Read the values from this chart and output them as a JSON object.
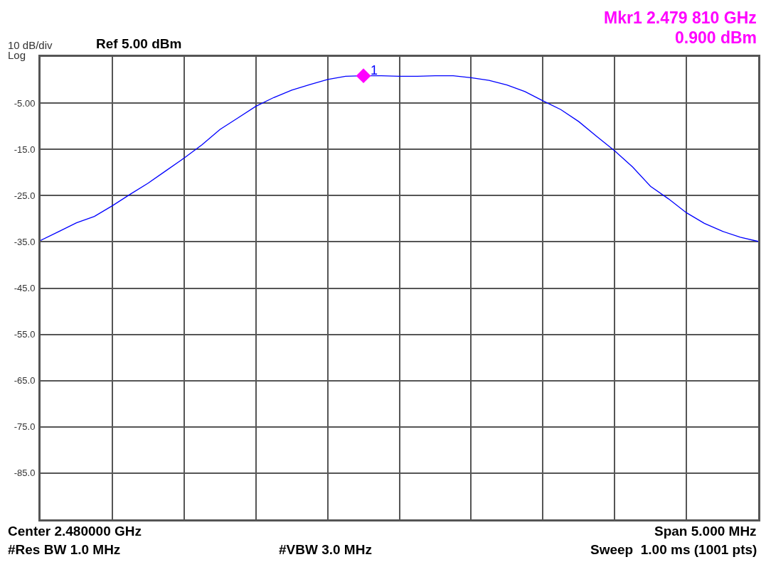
{
  "chart_data": {
    "type": "line",
    "categories": [
      null,
      null,
      null,
      null,
      null,
      null,
      null,
      null,
      null,
      null,
      null,
      null,
      null,
      null,
      null,
      null,
      null,
      null,
      null,
      null,
      null,
      null,
      null,
      null,
      null,
      null,
      null,
      null,
      null,
      null,
      null,
      null,
      null,
      null,
      null,
      null,
      null,
      null,
      null,
      null,
      null
    ],
    "series": [
      {
        "color": "#0000ff",
        "values": [
          -34.7,
          -32.8,
          -30.9,
          -29.5,
          -27.2,
          -24.7,
          -22.3,
          -19.6,
          -16.9,
          -14.0,
          -10.7,
          -8.2,
          -5.7,
          -3.8,
          -2.2,
          -1.0,
          0.1,
          0.8,
          0.9,
          0.9,
          0.8,
          0.8,
          0.9,
          0.9,
          0.5,
          -0.1,
          -1.1,
          -2.5,
          -4.5,
          -6.4,
          -9.0,
          -12.2,
          -15.3,
          -18.8,
          -23.0,
          -25.7,
          -28.7,
          -31.0,
          -32.7,
          -34.0,
          -34.9
        ]
      },
      {
        "type": "scatter",
        "marker": "diamond",
        "color": "#ff00ff",
        "values": [
          null,
          null,
          null,
          null,
          null,
          null,
          null,
          null,
          null,
          null,
          null,
          null,
          null,
          null,
          null,
          null,
          null,
          null,
          0.9,
          null,
          null,
          null,
          null,
          null,
          null,
          null,
          null,
          null,
          null,
          null,
          null,
          null,
          null,
          null,
          null,
          null,
          null,
          null,
          null,
          null,
          null
        ]
      }
    ],
    "ylim": [
      -95,
      5
    ],
    "yticks": [
      {
        "value": -5,
        "label": "-5.00"
      },
      {
        "value": -15,
        "label": "-15.0"
      },
      {
        "value": -25,
        "label": "-25.0"
      },
      {
        "value": -35,
        "label": "-35.0"
      },
      {
        "value": -45,
        "label": "-45.0"
      },
      {
        "value": -55,
        "label": "-55.0"
      },
      {
        "value": -65,
        "label": "-65.0"
      },
      {
        "value": -75,
        "label": "-75.0"
      },
      {
        "value": -85,
        "label": "-85.0"
      }
    ],
    "grid": true,
    "marker": "none",
    "line_style": "solid",
    "annotations": [
      {
        "text": "1",
        "y": 0.9
      },
      "Mkr1 2.479 810 GHz",
      "0.900 dBm",
      "10 dB/div",
      "Log",
      "Ref 5.00 dBm",
      "Center 2.480000 GHz",
      "Span 5.000 MHz",
      "#Res BW 1.0 MHz",
      "#VBW 3.0 MHz",
      "Sweep  1.00 ms (1001 pts)"
    ]
  }
}
